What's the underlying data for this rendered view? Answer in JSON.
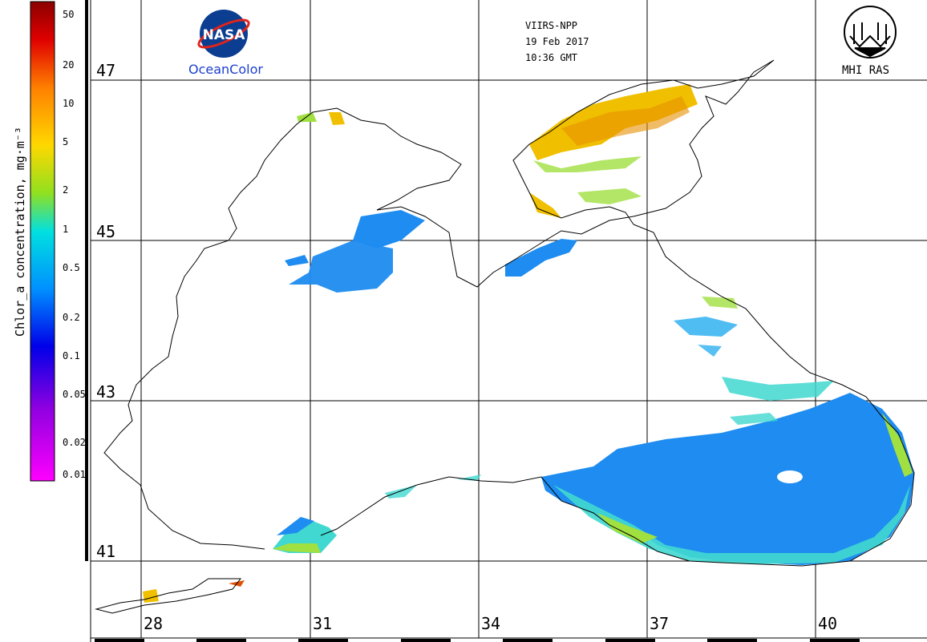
{
  "header": {
    "sensor": "VIIRS-NPP",
    "date": "19 Feb 2017",
    "time": "10:36 GMT"
  },
  "logos": {
    "nasa_label": "NASA",
    "oceancolor_label": "OceanColor",
    "mhi_label": "MHI RAS"
  },
  "colorbar": {
    "title": "Chlor_a concentration, mg·m⁻³",
    "ticks": [
      "50",
      "20",
      "10",
      "5",
      "2",
      "1",
      "0.5",
      "0.2",
      "0.1",
      "0.05",
      "0.02",
      "0.01"
    ]
  },
  "grid": {
    "latitudes": [
      "47",
      "45",
      "43",
      "41"
    ],
    "longitudes": [
      "28",
      "31",
      "34",
      "37",
      "40"
    ]
  },
  "colors": {
    "land": "#ffffff",
    "coast": "#000000",
    "low_chl": "#1e90ff",
    "mid_chl": "#20d8d0",
    "high_chl": "#f5c000"
  }
}
